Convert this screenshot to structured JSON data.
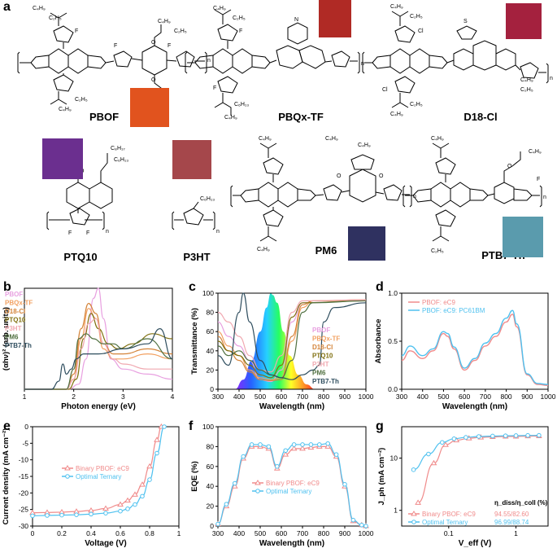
{
  "panels": {
    "a": "a",
    "b": "b",
    "c": "c",
    "d": "d",
    "e": "e",
    "f": "f",
    "g": "g"
  },
  "molecules": [
    {
      "name": "PBOF",
      "color": "#e1531e"
    },
    {
      "name": "PBQx-TF",
      "color": "#b02a25"
    },
    {
      "name": "D18-Cl",
      "color": "#a4213e"
    },
    {
      "name": "PTQ10",
      "color": "#6b2f8f"
    },
    {
      "name": "P3HT",
      "color": "#a5474b"
    },
    {
      "name": "PM6",
      "color": "#2f3160"
    },
    {
      "name": "PTB7-Th",
      "color": "#5a9bad"
    }
  ],
  "chem_labels": {
    "C4H9": "C₄H₉",
    "C2H5": "C₂H₅",
    "C6H13": "C₆H₁₃",
    "C8H17": "C₈H₁₇",
    "C4H9b": "C₄H₉",
    "F": "F",
    "Cl": "Cl",
    "O": "O",
    "N": "N",
    "S": "S",
    "n": "n"
  },
  "chart_data": [
    {
      "panel": "b",
      "type": "line",
      "xlabel": "Photon energy (eV)",
      "ylabel": "(αhν)² (arb. units)",
      "xlim": [
        1,
        4
      ],
      "xticks": [
        1,
        2,
        3,
        4
      ],
      "legend": [
        "PBOF",
        "PBQx-TF",
        "D18-Cl",
        "PTQ10",
        "P3HT",
        "PM6",
        "PTB7-Th"
      ],
      "series": [
        {
          "name": "PBOF",
          "color": "#e8a0e0",
          "x": [
            1.0,
            1.9,
            2.1,
            2.25,
            2.4,
            2.5,
            2.6,
            2.75,
            3.0,
            3.5,
            4.0
          ],
          "y": [
            0,
            0,
            0.05,
            0.3,
            0.9,
            1.0,
            0.7,
            0.3,
            0.2,
            0.15,
            0.1
          ]
        },
        {
          "name": "PBQx-TF",
          "color": "#f2a060",
          "x": [
            1.0,
            1.85,
            2.0,
            2.15,
            2.3,
            2.45,
            2.6,
            2.8,
            3.0,
            3.5,
            4.0
          ],
          "y": [
            0,
            0,
            0.1,
            0.5,
            0.8,
            0.7,
            0.4,
            0.3,
            0.3,
            0.35,
            0.3
          ]
        },
        {
          "name": "D18-Cl",
          "color": "#d4843a",
          "x": [
            1.0,
            1.85,
            2.0,
            2.15,
            2.3,
            2.45,
            2.6,
            2.8,
            3.0,
            3.5,
            4.0
          ],
          "y": [
            0,
            0,
            0.15,
            0.6,
            0.85,
            0.75,
            0.45,
            0.35,
            0.35,
            0.4,
            0.35
          ]
        },
        {
          "name": "PTQ10",
          "color": "#807010",
          "x": [
            1.0,
            1.9,
            2.05,
            2.2,
            2.35,
            2.5,
            2.7,
            2.9,
            3.2,
            3.6,
            4.0
          ],
          "y": [
            0,
            0,
            0.1,
            0.5,
            0.75,
            0.6,
            0.45,
            0.4,
            0.45,
            0.55,
            0.5
          ]
        },
        {
          "name": "P3HT",
          "color": "#f0a8b0",
          "x": [
            1.0,
            1.85,
            2.0,
            2.15,
            2.3,
            2.45,
            2.6,
            2.8,
            3.0,
            3.5,
            4.0
          ],
          "y": [
            0,
            0,
            0.1,
            0.4,
            0.65,
            0.7,
            0.45,
            0.3,
            0.25,
            0.2,
            0.2
          ]
        },
        {
          "name": "PM6",
          "color": "#507040",
          "x": [
            1.0,
            1.85,
            2.0,
            2.1,
            2.25,
            2.4,
            2.6,
            2.8,
            3.0,
            3.5,
            4.0
          ],
          "y": [
            0,
            0,
            0.2,
            0.5,
            0.55,
            0.5,
            0.45,
            0.45,
            0.4,
            0.5,
            0.3
          ]
        },
        {
          "name": "PTB7-Th",
          "color": "#2e4d5e",
          "x": [
            1.0,
            1.55,
            1.7,
            1.78,
            1.85,
            1.95,
            2.05,
            2.2,
            2.5,
            3.0,
            3.5,
            3.75,
            4.0
          ],
          "y": [
            0,
            0,
            0.08,
            0.25,
            0.15,
            0.2,
            0.3,
            0.35,
            0.35,
            0.4,
            0.45,
            0.6,
            0.3
          ]
        }
      ]
    },
    {
      "panel": "c",
      "type": "line",
      "xlabel": "Wavelength (nm)",
      "ylabel": "Transmittance (%)",
      "xlim": [
        300,
        1000
      ],
      "ylim": [
        0,
        100
      ],
      "xticks": [
        300,
        400,
        500,
        600,
        700,
        800,
        900,
        1000
      ],
      "yticks": [
        0,
        20,
        40,
        60,
        80,
        100
      ],
      "legend": [
        "PBOF",
        "PBQx-TF",
        "D18-Cl",
        "PTQ10",
        "P3HT",
        "PM6",
        "PTB7-Th"
      ],
      "series": [
        {
          "name": "PBOF",
          "color": "#e8a0e0",
          "x": [
            300,
            350,
            400,
            450,
            500,
            550,
            600,
            650,
            700,
            1000
          ],
          "y": [
            70,
            55,
            45,
            30,
            10,
            8,
            20,
            70,
            90,
            92
          ]
        },
        {
          "name": "PBQx-TF",
          "color": "#f2a060",
          "x": [
            300,
            350,
            400,
            450,
            500,
            550,
            600,
            650,
            700,
            750,
            1000
          ],
          "y": [
            60,
            45,
            35,
            20,
            12,
            10,
            12,
            50,
            85,
            92,
            93
          ]
        },
        {
          "name": "D18-Cl",
          "color": "#d4843a",
          "x": [
            300,
            350,
            400,
            450,
            500,
            550,
            600,
            650,
            700,
            750,
            1000
          ],
          "y": [
            55,
            40,
            30,
            18,
            10,
            9,
            10,
            55,
            88,
            92,
            93
          ]
        },
        {
          "name": "PTQ10",
          "color": "#807010",
          "x": [
            300,
            350,
            400,
            450,
            500,
            550,
            600,
            650,
            700,
            1000
          ],
          "y": [
            50,
            40,
            35,
            25,
            15,
            12,
            25,
            75,
            90,
            92
          ]
        },
        {
          "name": "P3HT",
          "color": "#f0a8b0",
          "x": [
            300,
            350,
            400,
            450,
            500,
            550,
            600,
            650,
            700,
            1000
          ],
          "y": [
            80,
            70,
            55,
            35,
            20,
            18,
            35,
            80,
            92,
            93
          ]
        },
        {
          "name": "PM6",
          "color": "#507040",
          "x": [
            300,
            350,
            400,
            450,
            500,
            550,
            600,
            650,
            700,
            750,
            1000
          ],
          "y": [
            45,
            35,
            40,
            30,
            20,
            15,
            12,
            30,
            80,
            90,
            92
          ]
        },
        {
          "name": "PTB7-Th",
          "color": "#2e4d5e",
          "x": [
            300,
            350,
            400,
            420,
            450,
            500,
            550,
            600,
            650,
            700,
            750,
            780,
            800,
            850,
            1000
          ],
          "y": [
            35,
            25,
            80,
            100,
            70,
            30,
            15,
            12,
            10,
            15,
            20,
            25,
            70,
            85,
            90
          ]
        }
      ]
    },
    {
      "panel": "d",
      "type": "line",
      "xlabel": "Wavelength (nm)",
      "ylabel": "Absorbance",
      "xlim": [
        300,
        1000
      ],
      "ylim": [
        0,
        1.0
      ],
      "xticks": [
        300,
        400,
        500,
        600,
        700,
        800,
        900,
        1000
      ],
      "yticks": [
        0.0,
        0.5,
        1.0
      ],
      "legend": [
        "PBOF: eC9",
        "PBOF: eC9: PC61BM"
      ],
      "series": [
        {
          "name": "PBOF: eC9",
          "color": "#f08b8b",
          "x": [
            300,
            340,
            400,
            450,
            500,
            520,
            550,
            600,
            650,
            700,
            750,
            800,
            830,
            850,
            900,
            950,
            1000
          ],
          "y": [
            0.3,
            0.4,
            0.32,
            0.4,
            0.58,
            0.55,
            0.42,
            0.2,
            0.3,
            0.45,
            0.55,
            0.7,
            0.78,
            0.65,
            0.15,
            0.05,
            0.04
          ]
        },
        {
          "name": "PBOF: eC9: PC61BM",
          "color": "#4fc1ef",
          "x": [
            300,
            340,
            400,
            450,
            500,
            520,
            550,
            600,
            650,
            700,
            750,
            800,
            830,
            850,
            900,
            950,
            1000
          ],
          "y": [
            0.35,
            0.45,
            0.35,
            0.42,
            0.6,
            0.58,
            0.44,
            0.22,
            0.32,
            0.48,
            0.58,
            0.74,
            0.82,
            0.68,
            0.16,
            0.06,
            0.05
          ]
        }
      ]
    },
    {
      "panel": "e",
      "type": "line",
      "xlabel": "Voltage (V)",
      "ylabel": "Current density (mA cm⁻²)",
      "xlim": [
        0,
        1.0
      ],
      "ylim": [
        -30,
        0
      ],
      "xticks": [
        0.0,
        0.2,
        0.4,
        0.6,
        0.8,
        1.0
      ],
      "yticks": [
        0,
        -5,
        -10,
        -15,
        -20,
        -25,
        -30
      ],
      "legend": [
        "Binary PBOF: eC9",
        "Optimal Ternary"
      ],
      "series": [
        {
          "name": "Binary PBOF: eC9",
          "color": "#f08b8b",
          "x": [
            0.0,
            0.1,
            0.2,
            0.3,
            0.4,
            0.5,
            0.6,
            0.65,
            0.7,
            0.75,
            0.8,
            0.85,
            0.88
          ],
          "y": [
            -26.0,
            -25.9,
            -25.8,
            -25.6,
            -25.3,
            -24.7,
            -23.5,
            -22.3,
            -20.5,
            -17.5,
            -12.0,
            -4.0,
            0.0
          ]
        },
        {
          "name": "Optimal Ternary",
          "color": "#4fc1ef",
          "x": [
            0.0,
            0.1,
            0.2,
            0.3,
            0.4,
            0.5,
            0.6,
            0.65,
            0.7,
            0.75,
            0.8,
            0.85,
            0.9
          ],
          "y": [
            -26.9,
            -26.8,
            -26.7,
            -26.6,
            -26.4,
            -26.1,
            -25.5,
            -24.8,
            -23.5,
            -21.0,
            -16.0,
            -8.0,
            0.0
          ]
        }
      ]
    },
    {
      "panel": "f",
      "type": "line",
      "xlabel": "Wavelength (nm)",
      "ylabel": "EQE (%)",
      "xlim": [
        300,
        1000
      ],
      "ylim": [
        0,
        100
      ],
      "xticks": [
        300,
        400,
        500,
        600,
        700,
        800,
        900,
        1000
      ],
      "yticks": [
        0,
        20,
        40,
        60,
        80,
        100
      ],
      "legend": [
        "Binary PBOF: eC9",
        "Optimal Ternary"
      ],
      "series": [
        {
          "name": "Binary PBOF: eC9",
          "color": "#f08b8b",
          "x": [
            300,
            340,
            380,
            420,
            460,
            500,
            540,
            580,
            620,
            660,
            700,
            740,
            780,
            820,
            860,
            900,
            940,
            980,
            1000
          ],
          "y": [
            2,
            20,
            40,
            68,
            80,
            80,
            78,
            58,
            72,
            78,
            78,
            79,
            80,
            80,
            70,
            40,
            5,
            1,
            0
          ]
        },
        {
          "name": "Optimal Ternary",
          "color": "#4fc1ef",
          "x": [
            300,
            340,
            380,
            420,
            460,
            500,
            540,
            580,
            620,
            660,
            700,
            740,
            780,
            820,
            860,
            900,
            940,
            980,
            1000
          ],
          "y": [
            2,
            22,
            43,
            70,
            82,
            82,
            80,
            60,
            76,
            82,
            82,
            82,
            82,
            83,
            72,
            42,
            6,
            1,
            0
          ]
        }
      ]
    },
    {
      "panel": "g",
      "type": "scatter",
      "xlabel": "V_eff (V)",
      "ylabel": "J_ph (mA cm⁻²)",
      "xscale": "log",
      "yscale": "log",
      "xlim": [
        0.02,
        3
      ],
      "ylim": [
        0.5,
        40
      ],
      "xticks": [
        0.1,
        1
      ],
      "yticks": [
        1,
        10
      ],
      "legend": [
        "Binary PBOF: eC9",
        "Optimal Ternary"
      ],
      "table_header": "η_diss/η_coll (%)",
      "table_values": [
        "94.55/82.60",
        "96.99/88.74"
      ],
      "series": [
        {
          "name": "Binary PBOF: eC9",
          "color": "#f08b8b",
          "x": [
            0.035,
            0.06,
            0.09,
            0.13,
            0.2,
            0.3,
            0.45,
            0.7,
            1.0,
            1.5,
            2.2
          ],
          "y": [
            1.4,
            8,
            18,
            22,
            24,
            25,
            25.5,
            26,
            26,
            26.3,
            26.5
          ]
        },
        {
          "name": "Optimal Ternary",
          "color": "#4fc1ef",
          "x": [
            0.03,
            0.05,
            0.08,
            0.12,
            0.18,
            0.28,
            0.45,
            0.7,
            1.0,
            1.5,
            2.2
          ],
          "y": [
            6,
            12,
            20,
            23.5,
            25,
            26,
            26.5,
            26.8,
            27,
            27.2,
            27.3
          ]
        }
      ]
    }
  ]
}
